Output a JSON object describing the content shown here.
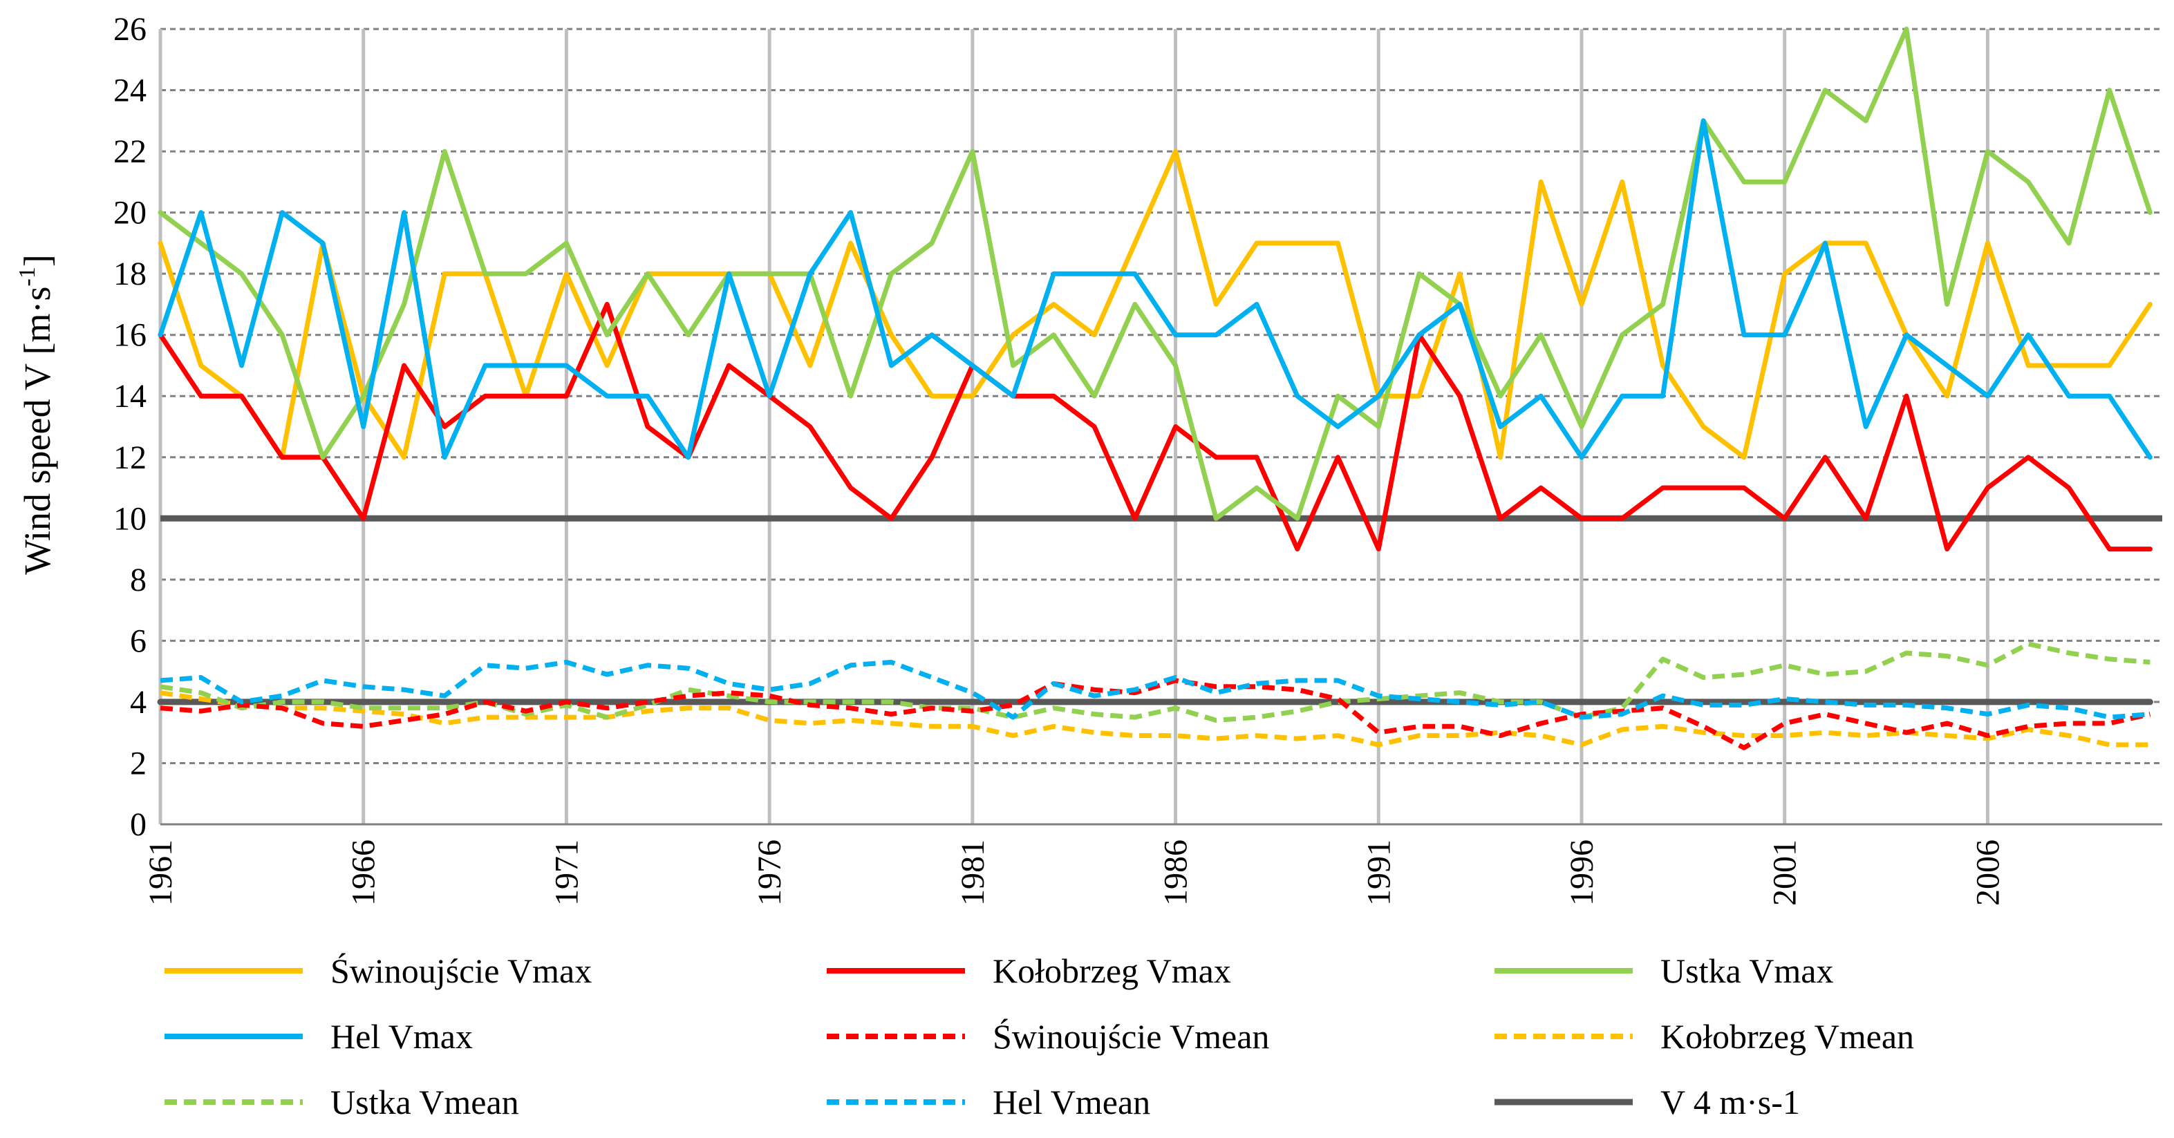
{
  "chart_data": {
    "type": "line",
    "title": "",
    "xlabel": "",
    "ylabel_main": "Wind speed V [m·s",
    "ylabel_sup": "-1",
    "ylabel_close": "]",
    "ylim": [
      0,
      26
    ],
    "yticks": [
      0,
      2,
      4,
      6,
      8,
      10,
      12,
      14,
      16,
      18,
      20,
      22,
      24,
      26
    ],
    "x": [
      1961,
      1962,
      1963,
      1964,
      1965,
      1966,
      1967,
      1968,
      1969,
      1970,
      1971,
      1972,
      1973,
      1974,
      1975,
      1976,
      1977,
      1978,
      1979,
      1980,
      1981,
      1982,
      1983,
      1984,
      1985,
      1986,
      1987,
      1988,
      1989,
      1990,
      1991,
      1992,
      1993,
      1994,
      1995,
      1996,
      1997,
      1998,
      1999,
      2000,
      2001,
      2002,
      2003,
      2004,
      2005,
      2006,
      2007,
      2008,
      2009,
      2010
    ],
    "xticks": [
      1961,
      1966,
      1971,
      1976,
      1981,
      1986,
      1991,
      1996,
      2001,
      2006
    ],
    "legend_position": "bottom",
    "series": [
      {
        "name": "Świnoujście Vmax",
        "color": "#FFC000",
        "dashed": false,
        "values": [
          19,
          15,
          14,
          12,
          19,
          14,
          12,
          18,
          18,
          14,
          18,
          15,
          18,
          18,
          18,
          18,
          15,
          19,
          16,
          14,
          14,
          16,
          17,
          16,
          19,
          22,
          17,
          19,
          19,
          19,
          14,
          14,
          18,
          12,
          21,
          17,
          21,
          15,
          13,
          12,
          18,
          19,
          19,
          16,
          14,
          19,
          15,
          15,
          15,
          17
        ]
      },
      {
        "name": "Kołobrzeg Vmax",
        "color": "#FF0000",
        "dashed": false,
        "values": [
          16,
          14,
          14,
          12,
          12,
          10,
          15,
          13,
          14,
          14,
          14,
          17,
          13,
          12,
          15,
          14,
          13,
          11,
          10,
          12,
          15,
          14,
          14,
          13,
          10,
          13,
          12,
          12,
          9,
          12,
          9,
          16,
          14,
          10,
          11,
          10,
          10,
          11,
          11,
          11,
          10,
          12,
          10,
          14,
          9,
          11,
          12,
          11,
          9,
          9
        ]
      },
      {
        "name": "Ustka Vmax",
        "color": "#92D050",
        "dashed": false,
        "values": [
          20,
          19,
          18,
          16,
          12,
          14,
          17,
          22,
          18,
          18,
          19,
          16,
          18,
          16,
          18,
          18,
          18,
          14,
          18,
          19,
          22,
          15,
          16,
          14,
          17,
          15,
          10,
          11,
          10,
          14,
          13,
          18,
          17,
          14,
          16,
          13,
          16,
          17,
          23,
          21,
          21,
          24,
          23,
          26,
          17,
          22,
          21,
          19,
          24,
          20
        ]
      },
      {
        "name": "Hel Vmax",
        "color": "#00B0F0",
        "dashed": false,
        "values": [
          16,
          20,
          15,
          20,
          19,
          13,
          20,
          12,
          15,
          15,
          15,
          14,
          14,
          12,
          18,
          14,
          18,
          20,
          15,
          16,
          15,
          14,
          18,
          18,
          18,
          16,
          16,
          17,
          14,
          13,
          14,
          16,
          17,
          13,
          14,
          12,
          14,
          14,
          23,
          16,
          16,
          19,
          13,
          16,
          15,
          14,
          16,
          14,
          14,
          12
        ]
      },
      {
        "name": "Świnoujście Vmean",
        "color": "#FF0000",
        "dashed": true,
        "values": [
          3.8,
          3.7,
          3.9,
          3.8,
          3.3,
          3.2,
          3.4,
          3.6,
          4.0,
          3.7,
          4.0,
          3.8,
          4.0,
          4.2,
          4.3,
          4.2,
          3.9,
          3.8,
          3.6,
          3.8,
          3.7,
          3.9,
          4.6,
          4.4,
          4.3,
          4.7,
          4.5,
          4.5,
          4.4,
          4.1,
          3.0,
          3.2,
          3.2,
          2.9,
          3.3,
          3.6,
          3.7,
          3.8,
          3.2,
          2.5,
          3.3,
          3.6,
          3.3,
          3.0,
          3.3,
          2.9,
          3.2,
          3.3,
          3.3,
          3.6
        ]
      },
      {
        "name": "Kołobrzeg Vmean",
        "color": "#FFC000",
        "dashed": true,
        "values": [
          4.3,
          4.1,
          3.9,
          3.8,
          3.8,
          3.7,
          3.6,
          3.3,
          3.5,
          3.5,
          3.5,
          3.5,
          3.7,
          3.8,
          3.8,
          3.4,
          3.3,
          3.4,
          3.3,
          3.2,
          3.2,
          2.9,
          3.2,
          3.0,
          2.9,
          2.9,
          2.8,
          2.9,
          2.8,
          2.9,
          2.6,
          2.9,
          2.9,
          3.0,
          2.9,
          2.6,
          3.1,
          3.2,
          3.0,
          2.9,
          2.9,
          3.0,
          2.9,
          3.0,
          2.9,
          2.8,
          3.1,
          2.9,
          2.6,
          2.6
        ]
      },
      {
        "name": "Ustka Vmean",
        "color": "#92D050",
        "dashed": true,
        "values": [
          4.5,
          4.3,
          3.8,
          4.0,
          4.0,
          3.8,
          3.8,
          3.8,
          4.0,
          3.6,
          3.9,
          3.5,
          3.9,
          4.4,
          4.2,
          4.0,
          4.0,
          4.0,
          4.0,
          3.8,
          3.8,
          3.5,
          3.8,
          3.6,
          3.5,
          3.8,
          3.4,
          3.5,
          3.7,
          4.0,
          4.1,
          4.2,
          4.3,
          4.0,
          4.0,
          3.5,
          3.8,
          5.4,
          4.8,
          4.9,
          5.2,
          4.9,
          5.0,
          5.6,
          5.5,
          5.2,
          5.9,
          5.6,
          5.4,
          5.3
        ]
      },
      {
        "name": "Hel Vmean",
        "color": "#00B0F0",
        "dashed": true,
        "values": [
          4.7,
          4.8,
          4.0,
          4.2,
          4.7,
          4.5,
          4.4,
          4.2,
          5.2,
          5.1,
          5.3,
          4.9,
          5.2,
          5.1,
          4.6,
          4.4,
          4.6,
          5.2,
          5.3,
          4.8,
          4.3,
          3.5,
          4.6,
          4.2,
          4.4,
          4.8,
          4.3,
          4.6,
          4.7,
          4.7,
          4.2,
          4.1,
          4.0,
          3.9,
          4.0,
          3.5,
          3.6,
          4.2,
          3.9,
          3.9,
          4.1,
          4.0,
          3.9,
          3.9,
          3.8,
          3.6,
          3.9,
          3.8,
          3.5,
          3.6
        ]
      },
      {
        "name": "V 4 m·s-1",
        "color": "#595959",
        "dashed": false,
        "thick": true,
        "values": [
          4,
          4,
          4,
          4,
          4,
          4,
          4,
          4,
          4,
          4,
          4,
          4,
          4,
          4,
          4,
          4,
          4,
          4,
          4,
          4,
          4,
          4,
          4,
          4,
          4,
          4,
          4,
          4,
          4,
          4,
          4,
          4,
          4,
          4,
          4,
          4,
          4,
          4,
          4,
          4,
          4,
          4,
          4,
          4,
          4,
          4,
          4,
          4,
          4,
          4
        ]
      }
    ],
    "reference_lines": [
      {
        "y": 10,
        "color": "#595959"
      }
    ],
    "legend": [
      [
        "Świnoujście Vmax",
        "Kołobrzeg Vmax",
        "Ustka Vmax"
      ],
      [
        "Hel Vmax",
        "Świnoujście Vmean",
        "Kołobrzeg Vmean"
      ],
      [
        "Ustka Vmean",
        "Hel Vmean",
        "V 4 m·s-1"
      ]
    ]
  }
}
